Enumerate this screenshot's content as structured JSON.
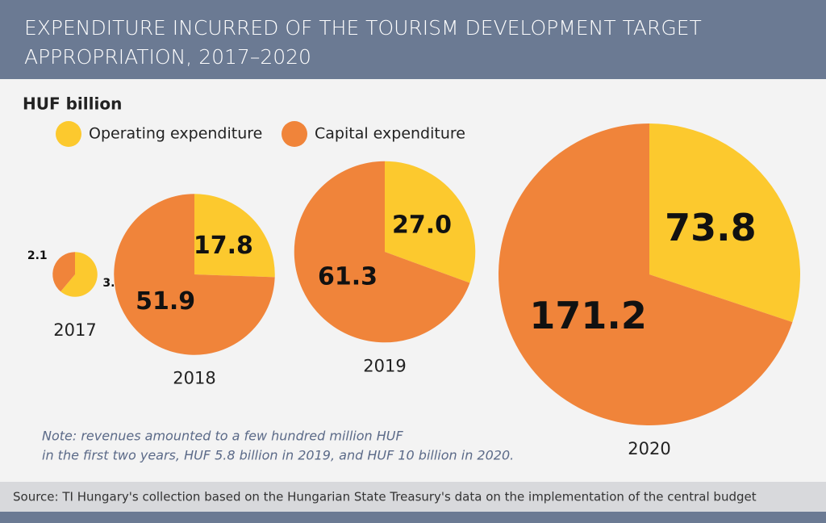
{
  "chart_data": {
    "type": "pie",
    "title": [
      "EXPENDITURE INCURRED OF THE TOURISM DEVELOPMENT TARGET",
      "APPROPRIATION, 2017–2020"
    ],
    "subtitle": "HUF billion",
    "categories": [
      "2017",
      "2018",
      "2019",
      "2020"
    ],
    "series": [
      {
        "name": "Operating expenditure",
        "color": "#fcc92e",
        "values": [
          3.3,
          17.8,
          27.0,
          73.8
        ],
        "value_labels": [
          "3.3",
          "17.8",
          "27.0",
          "73.8"
        ]
      },
      {
        "name": "Capital expenditure",
        "color": "#f0843a",
        "values": [
          2.1,
          51.9,
          61.3,
          171.2
        ]
      }
    ],
    "note": [
      "Note: revenues amounted to a few hundred million HUF",
      "in the first two years, HUF 5.8 billion in 2019, and HUF 10 billion in 2020."
    ],
    "source": "Source: TI Hungary's collection based on the Hungarian State Treasury's data on the implementation of the central budget"
  }
}
